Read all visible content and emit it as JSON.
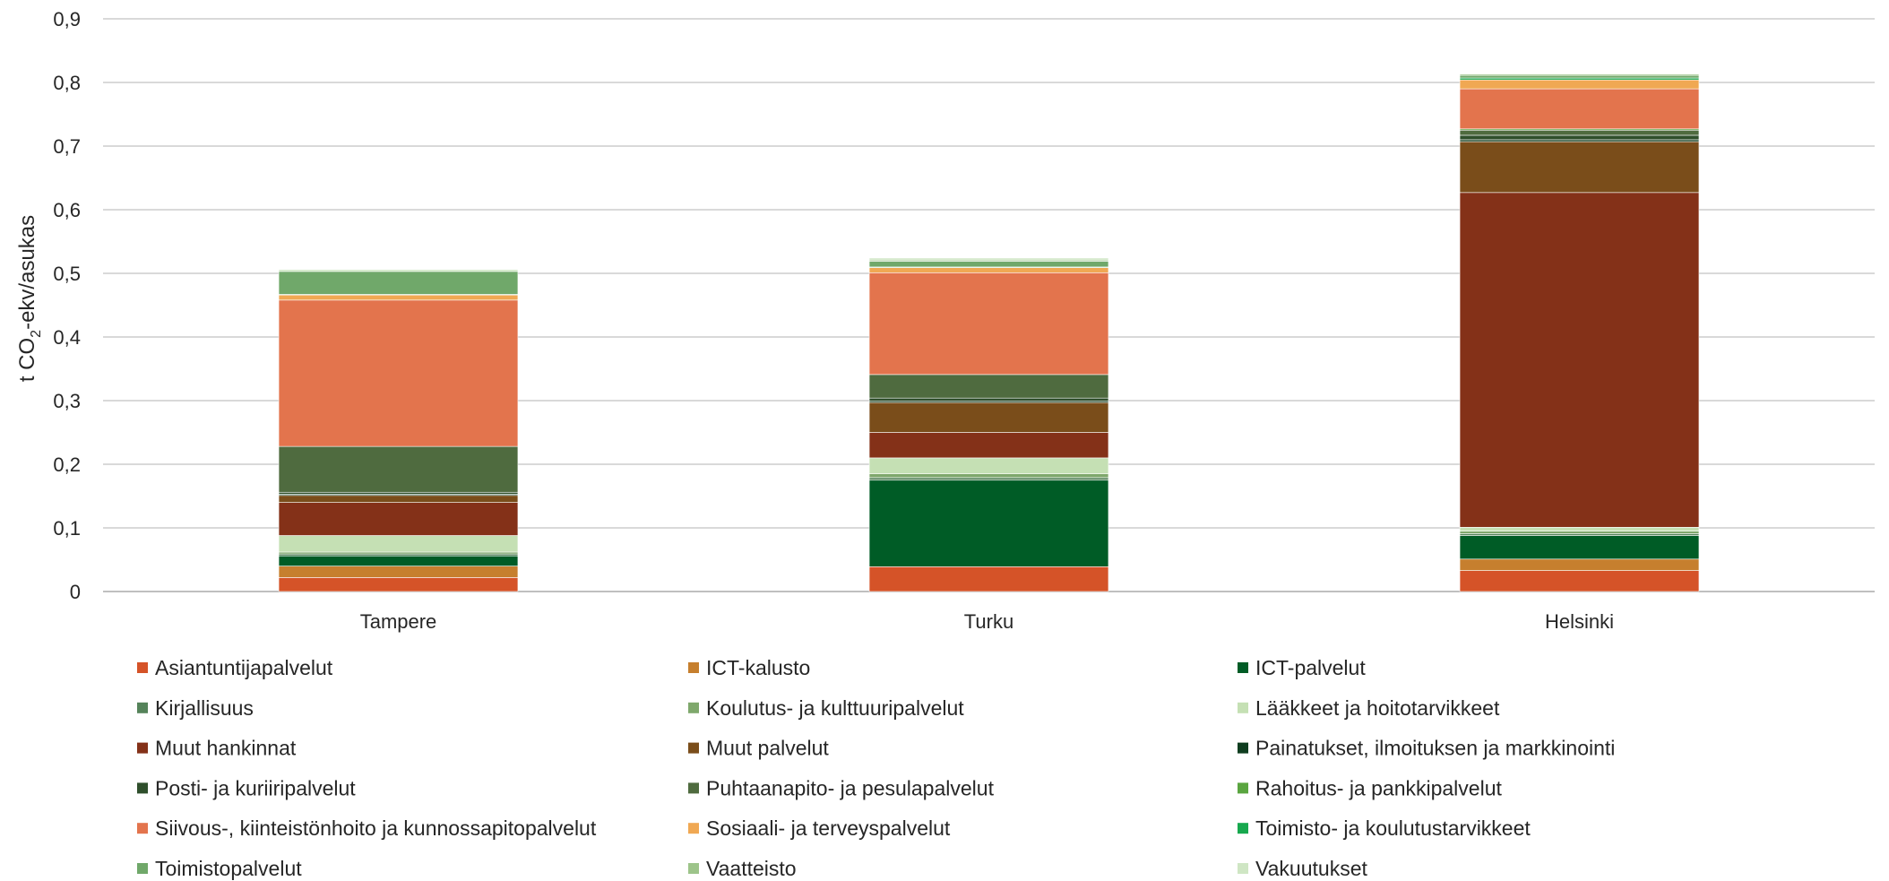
{
  "chart_data": {
    "type": "bar",
    "stacked": true,
    "title": "",
    "xlabel": "",
    "ylabel": "t CO2-ekv/asukas",
    "ylabel_parts": {
      "prefix": "t CO",
      "subscript": "2",
      "suffix": "-ekv/asukas"
    },
    "ylim": [
      0,
      0.9
    ],
    "yticks": [
      "0",
      "0,1",
      "0,2",
      "0,3",
      "0,4",
      "0,5",
      "0,6",
      "0,7",
      "0,8",
      "0,9"
    ],
    "grid": "horizontal",
    "legend_position": "bottom",
    "categories": [
      "Tampere",
      "Turku",
      "Helsinki"
    ],
    "series": [
      {
        "name": "Asiantuntijapalvelut",
        "color": "#d55328",
        "values": [
          0.022,
          0.039,
          0.033
        ]
      },
      {
        "name": "ICT-kalusto",
        "color": "#c67f2e",
        "values": [
          0.018,
          0.0,
          0.018
        ]
      },
      {
        "name": "ICT-palvelut",
        "color": "#005c26",
        "values": [
          0.016,
          0.136,
          0.037
        ]
      },
      {
        "name": "Kirjallisuus",
        "color": "#55835a",
        "values": [
          0.003,
          0.004,
          0.003
        ]
      },
      {
        "name": "Koulutus- ja kulttuuripalvelut",
        "color": "#7fa86c",
        "values": [
          0.003,
          0.006,
          0.004
        ]
      },
      {
        "name": "Lääkkeet ja hoitotarvikkeet",
        "color": "#c5e0b4",
        "values": [
          0.026,
          0.025,
          0.006
        ]
      },
      {
        "name": "Muut hankinnat",
        "color": "#843118",
        "values": [
          0.052,
          0.04,
          0.526
        ]
      },
      {
        "name": "Muut palvelut",
        "color": "#7a4d1a",
        "values": [
          0.011,
          0.047,
          0.08
        ]
      },
      {
        "name": "Painatukset, ilmoituksen ja markkinointi",
        "color": "#0f3d1f",
        "values": [
          0.002,
          0.002,
          0.003
        ]
      },
      {
        "name": "Posti- ja kuriiripalvelut",
        "color": "#2f4f2c",
        "values": [
          0.003,
          0.005,
          0.007
        ]
      },
      {
        "name": "Puhtaanapito- ja pesulapalvelut",
        "color": "#4f6b3f",
        "values": [
          0.072,
          0.037,
          0.008
        ]
      },
      {
        "name": "Rahoitus- ja pankkipalvelut",
        "color": "#5aa540",
        "values": [
          0.0,
          0.0,
          0.002
        ]
      },
      {
        "name": "Siivous-, kiinteistönhoito ja kunnossapitopalvelut",
        "color": "#e3744d",
        "values": [
          0.23,
          0.16,
          0.063
        ]
      },
      {
        "name": "Sosiaali- ja terveyspalvelut",
        "color": "#f0a853",
        "values": [
          0.008,
          0.008,
          0.014
        ]
      },
      {
        "name": "Toimisto- ja koulutustarvikkeet",
        "color": "#17a84e",
        "values": [
          0.001,
          0.001,
          0.003
        ]
      },
      {
        "name": "Toimistopalvelut",
        "color": "#70a86a",
        "values": [
          0.036,
          0.009,
          0.004
        ]
      },
      {
        "name": "Vaatteisto",
        "color": "#9dc48a",
        "values": [
          0.0,
          0.002,
          0.002
        ]
      },
      {
        "name": "Vakuutukset",
        "color": "#cfe6c4",
        "values": [
          0.003,
          0.003,
          0.001
        ]
      }
    ]
  }
}
